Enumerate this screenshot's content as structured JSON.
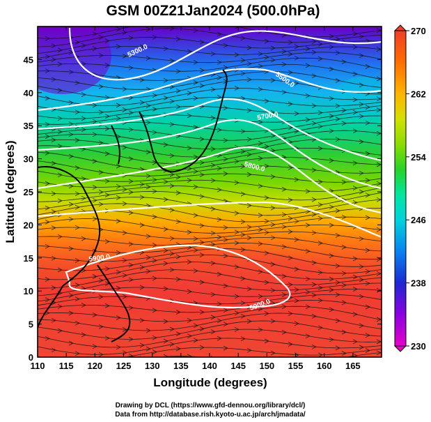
{
  "title": "GSM 00Z21Jan2024 (500.0hPa)",
  "xlabel": "Longitude (degrees)",
  "ylabel": "Latitude  (degrees)",
  "credits": [
    "Drawing by DCL (https://www.gfd-dennou.org/library/dcl/)",
    "Data from http://database.rish.kyoto-u.ac.jp/arch/jmadata/"
  ],
  "map": {
    "x_range": [
      110,
      170
    ],
    "y_range": [
      0,
      50
    ],
    "x_ticks": [
      110,
      115,
      120,
      125,
      130,
      135,
      140,
      145,
      150,
      155,
      160,
      165
    ],
    "y_ticks": [
      0,
      5,
      10,
      15,
      20,
      25,
      30,
      35,
      40,
      45
    ],
    "colorbar": {
      "range": [
        230,
        270
      ],
      "tick_values": [
        230,
        238,
        246,
        254,
        262,
        270
      ],
      "tick_labels": [
        "230",
        "238",
        "246",
        "254",
        "262",
        "270"
      ],
      "colors": [
        "#e600c8",
        "#8a00e0",
        "#1e28d2",
        "#0a82f0",
        "#00d2dc",
        "#00e6a0",
        "#28d228",
        "#8cdc00",
        "#d2e100",
        "#ffb400",
        "#ff6e00",
        "#f03c28"
      ]
    },
    "contour_labels": [
      "5300.0",
      "5500.0",
      "5700.0",
      "5800.0",
      "5900.0",
      "5900.0"
    ]
  }
}
